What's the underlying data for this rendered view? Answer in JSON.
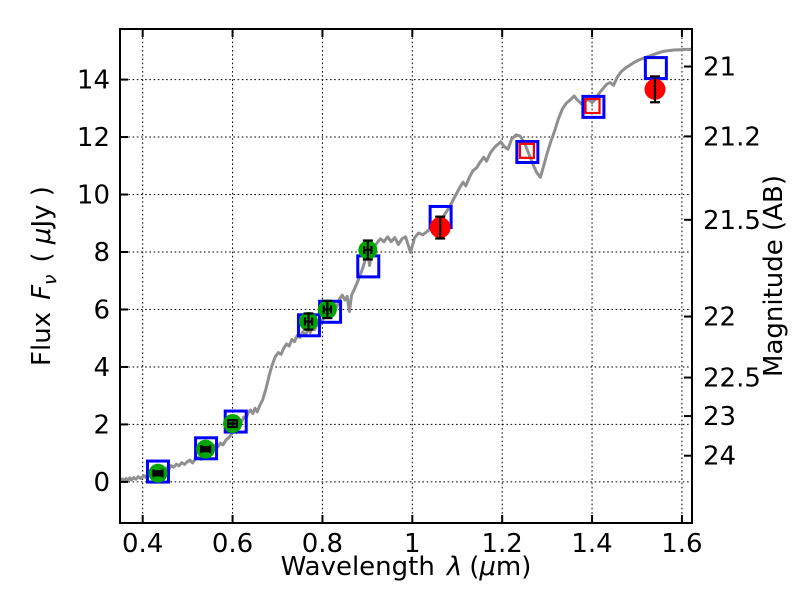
{
  "figure": {
    "background": "#ffffff"
  },
  "chart_data": {
    "type": "line+scatter",
    "title": "",
    "xlabel": {
      "word": "Wavelength",
      "symbol": "λ",
      "paren_open": "(",
      "mu": "μ",
      "rest": "m)"
    },
    "ylabel_left": {
      "word": "Flux",
      "symbol": "F",
      "sub": "ν",
      "paren_open": "( ",
      "mu": "μ",
      "rest": "Jy )"
    },
    "ylabel_right": "Magnitude (AB)",
    "xlim": [
      0.3495,
      1.6224
    ],
    "ylim": [
      -1.43,
      15.76
    ],
    "grid": {
      "show": true,
      "style": "dotted",
      "color": "#000000"
    },
    "x_ticks": [
      {
        "v": 0.4,
        "label": "0.4"
      },
      {
        "v": 0.6,
        "label": "0.6"
      },
      {
        "v": 0.8,
        "label": "0.8"
      },
      {
        "v": 1.0,
        "label": "1"
      },
      {
        "v": 1.2,
        "label": "1.2"
      },
      {
        "v": 1.4,
        "label": "1.4"
      },
      {
        "v": 1.6,
        "label": "1.6"
      }
    ],
    "y_ticks_left": [
      {
        "v": 0,
        "label": "0"
      },
      {
        "v": 2,
        "label": "2"
      },
      {
        "v": 4,
        "label": "4"
      },
      {
        "v": 6,
        "label": "6"
      },
      {
        "v": 8,
        "label": "8"
      },
      {
        "v": 10,
        "label": "10"
      },
      {
        "v": 12,
        "label": "12"
      },
      {
        "v": 14,
        "label": "14"
      }
    ],
    "y_ticks_right": [
      {
        "flux": 14.454,
        "label": "21"
      },
      {
        "flux": 12.023,
        "label": "21.2"
      },
      {
        "flux": 9.12,
        "label": "21.5"
      },
      {
        "flux": 5.754,
        "label": "22"
      },
      {
        "flux": 3.631,
        "label": "22.5"
      },
      {
        "flux": 2.291,
        "label": "23"
      },
      {
        "flux": 0.912,
        "label": "24"
      }
    ],
    "colors": {
      "spectrum": "#8f8f8f",
      "blue_square": "#0000ff",
      "red_square": "#ff0000",
      "green_circle": "#00a500",
      "red_circle": "#ff0000",
      "errorbar": "#000000",
      "axis": "#000000"
    },
    "spectrum": {
      "name": "model galaxy spectrum",
      "points": [
        [
          0.35,
          0.05
        ],
        [
          0.355,
          0.1
        ],
        [
          0.359,
          0.02
        ],
        [
          0.363,
          0.12
        ],
        [
          0.367,
          0.05
        ],
        [
          0.371,
          0.14
        ],
        [
          0.375,
          0.07
        ],
        [
          0.38,
          0.15
        ],
        [
          0.385,
          0.09
        ],
        [
          0.39,
          0.18
        ],
        [
          0.396,
          0.12
        ],
        [
          0.402,
          0.22
        ],
        [
          0.407,
          0.16
        ],
        [
          0.412,
          0.28
        ],
        [
          0.417,
          0.22
        ],
        [
          0.423,
          0.31
        ],
        [
          0.429,
          0.26
        ],
        [
          0.435,
          0.33
        ],
        [
          0.441,
          0.27
        ],
        [
          0.447,
          0.35
        ],
        [
          0.453,
          0.48
        ],
        [
          0.458,
          0.44
        ],
        [
          0.463,
          0.57
        ],
        [
          0.469,
          0.51
        ],
        [
          0.475,
          0.62
        ],
        [
          0.481,
          0.56
        ],
        [
          0.487,
          0.67
        ],
        [
          0.493,
          0.61
        ],
        [
          0.499,
          0.7
        ],
        [
          0.505,
          0.76
        ],
        [
          0.511,
          0.66
        ],
        [
          0.517,
          0.79
        ],
        [
          0.523,
          0.86
        ],
        [
          0.529,
          0.79
        ],
        [
          0.535,
          0.93
        ],
        [
          0.541,
          1.01
        ],
        [
          0.547,
          1.09
        ],
        [
          0.552,
          1.04
        ],
        [
          0.557,
          1.21
        ],
        [
          0.562,
          1.29
        ],
        [
          0.567,
          1.21
        ],
        [
          0.573,
          1.35
        ],
        [
          0.579,
          1.29
        ],
        [
          0.585,
          1.45
        ],
        [
          0.591,
          1.53
        ],
        [
          0.597,
          1.64
        ],
        [
          0.603,
          1.78
        ],
        [
          0.608,
          1.72
        ],
        [
          0.613,
          1.9
        ],
        [
          0.619,
          2.06
        ],
        [
          0.625,
          2.26
        ],
        [
          0.63,
          2.2
        ],
        [
          0.635,
          2.43
        ],
        [
          0.64,
          2.5
        ],
        [
          0.645,
          2.38
        ],
        [
          0.65,
          2.56
        ],
        [
          0.655,
          2.44
        ],
        [
          0.66,
          2.64
        ],
        [
          0.667,
          2.86
        ],
        [
          0.674,
          3.22
        ],
        [
          0.681,
          3.68
        ],
        [
          0.688,
          4.06
        ],
        [
          0.695,
          4.36
        ],
        [
          0.702,
          4.5
        ],
        [
          0.708,
          4.44
        ],
        [
          0.714,
          4.66
        ],
        [
          0.72,
          4.8
        ],
        [
          0.726,
          4.73
        ],
        [
          0.732,
          4.96
        ],
        [
          0.738,
          4.88
        ],
        [
          0.744,
          5.1
        ],
        [
          0.75,
          5.03
        ],
        [
          0.756,
          5.22
        ],
        [
          0.762,
          5.1
        ],
        [
          0.768,
          5.32
        ],
        [
          0.773,
          5.2
        ],
        [
          0.778,
          5.44
        ],
        [
          0.783,
          5.3
        ],
        [
          0.788,
          5.54
        ],
        [
          0.793,
          5.4
        ],
        [
          0.799,
          5.6
        ],
        [
          0.805,
          5.78
        ],
        [
          0.81,
          5.93
        ],
        [
          0.815,
          6.06
        ],
        [
          0.82,
          5.93
        ],
        [
          0.826,
          6.2
        ],
        [
          0.832,
          6.08
        ],
        [
          0.838,
          6.36
        ],
        [
          0.844,
          6.5
        ],
        [
          0.85,
          6.33
        ],
        [
          0.855,
          6.46
        ],
        [
          0.86,
          5.93
        ],
        [
          0.865,
          6.5
        ],
        [
          0.871,
          6.7
        ],
        [
          0.878,
          6.96
        ],
        [
          0.885,
          7.23
        ],
        [
          0.891,
          7.5
        ],
        [
          0.897,
          7.83
        ],
        [
          0.901,
          7.96
        ],
        [
          0.905,
          7.53
        ],
        [
          0.909,
          7.98
        ],
        [
          0.915,
          8.16
        ],
        [
          0.922,
          8.33
        ],
        [
          0.929,
          8.46
        ],
        [
          0.937,
          8.36
        ],
        [
          0.945,
          8.53
        ],
        [
          0.953,
          8.36
        ],
        [
          0.961,
          8.5
        ],
        [
          0.969,
          8.26
        ],
        [
          0.977,
          8.46
        ],
        [
          0.985,
          8.53
        ],
        [
          0.996,
          7.98
        ],
        [
          1.005,
          8.5
        ],
        [
          1.014,
          8.66
        ],
        [
          1.023,
          8.6
        ],
        [
          1.032,
          8.7
        ],
        [
          1.041,
          8.83
        ],
        [
          1.051,
          8.93
        ],
        [
          1.062,
          9.03
        ],
        [
          1.073,
          9.33
        ],
        [
          1.084,
          9.6
        ],
        [
          1.095,
          9.93
        ],
        [
          1.105,
          10.23
        ],
        [
          1.113,
          10.43
        ],
        [
          1.119,
          10.3
        ],
        [
          1.127,
          10.6
        ],
        [
          1.135,
          10.83
        ],
        [
          1.143,
          10.93
        ],
        [
          1.151,
          11.13
        ],
        [
          1.159,
          11.3
        ],
        [
          1.165,
          11.16
        ],
        [
          1.173,
          11.43
        ],
        [
          1.181,
          11.6
        ],
        [
          1.189,
          11.73
        ],
        [
          1.197,
          11.83
        ],
        [
          1.205,
          11.66
        ],
        [
          1.213,
          11.58
        ],
        [
          1.221,
          11.93
        ],
        [
          1.231,
          12.08
        ],
        [
          1.24,
          12.03
        ],
        [
          1.25,
          11.78
        ],
        [
          1.259,
          11.43
        ],
        [
          1.269,
          11.03
        ],
        [
          1.277,
          10.76
        ],
        [
          1.285,
          10.6
        ],
        [
          1.292,
          10.98
        ],
        [
          1.3,
          11.43
        ],
        [
          1.308,
          11.83
        ],
        [
          1.316,
          12.18
        ],
        [
          1.325,
          12.63
        ],
        [
          1.334,
          12.98
        ],
        [
          1.343,
          13.18
        ],
        [
          1.352,
          13.3
        ],
        [
          1.36,
          13.43
        ],
        [
          1.368,
          13.28
        ],
        [
          1.376,
          13.16
        ],
        [
          1.384,
          13.26
        ],
        [
          1.392,
          13.3
        ],
        [
          1.4,
          13.2
        ],
        [
          1.408,
          13.33
        ],
        [
          1.416,
          13.53
        ],
        [
          1.424,
          13.68
        ],
        [
          1.432,
          13.83
        ],
        [
          1.44,
          13.9
        ],
        [
          1.448,
          13.8
        ],
        [
          1.456,
          14.08
        ],
        [
          1.464,
          14.26
        ],
        [
          1.474,
          14.4
        ],
        [
          1.484,
          14.5
        ],
        [
          1.494,
          14.6
        ],
        [
          1.504,
          14.68
        ],
        [
          1.514,
          14.74
        ],
        [
          1.524,
          14.8
        ],
        [
          1.534,
          14.86
        ],
        [
          1.546,
          14.92
        ],
        [
          1.558,
          14.98
        ],
        [
          1.57,
          15.01
        ],
        [
          1.582,
          15.03
        ],
        [
          1.596,
          15.04
        ],
        [
          1.61,
          15.05
        ],
        [
          1.622,
          15.05
        ]
      ]
    },
    "series": [
      {
        "name": "model-photometry-blue-squares",
        "marker": "open-square",
        "color": "#0000ff",
        "size": 21,
        "stroke": 3,
        "points": [
          {
            "x": 0.434,
            "y": 0.36
          },
          {
            "x": 0.541,
            "y": 1.17
          },
          {
            "x": 0.607,
            "y": 2.1
          },
          {
            "x": 0.77,
            "y": 5.45
          },
          {
            "x": 0.817,
            "y": 5.92
          },
          {
            "x": 0.902,
            "y": 7.5
          },
          {
            "x": 1.063,
            "y": 9.22
          },
          {
            "x": 1.256,
            "y": 11.48
          },
          {
            "x": 1.403,
            "y": 13.05
          },
          {
            "x": 1.542,
            "y": 14.4
          }
        ]
      },
      {
        "name": "observed-red-squares",
        "marker": "open-square",
        "color": "#ff0000",
        "size": 14,
        "stroke": 2.2,
        "points": [
          {
            "x": 1.255,
            "y": 11.52
          },
          {
            "x": 1.401,
            "y": 13.08
          }
        ]
      },
      {
        "name": "observed-green-circles",
        "marker": "filled-circle",
        "color": "#00a500",
        "size": 19,
        "points": [
          {
            "x": 0.434,
            "y": 0.3,
            "yerr": 0.07,
            "xerr": 0.01
          },
          {
            "x": 0.54,
            "y": 1.14,
            "yerr": 0.07,
            "xerr": 0.01
          },
          {
            "x": 0.6,
            "y": 2.03,
            "yerr": 0.12,
            "xerr": 0.01
          },
          {
            "x": 0.769,
            "y": 5.58,
            "yerr": 0.28,
            "xerr": 0.008
          },
          {
            "x": 0.811,
            "y": 6.0,
            "yerr": 0.3,
            "xerr": 0.008
          },
          {
            "x": 0.901,
            "y": 8.07,
            "yerr": 0.33,
            "xerr": 0.008
          }
        ]
      },
      {
        "name": "observed-red-circles",
        "marker": "filled-circle",
        "color": "#ff0000",
        "size": 21,
        "points": [
          {
            "x": 1.062,
            "y": 8.85,
            "yerr": 0.38
          },
          {
            "x": 1.54,
            "y": 13.66,
            "yerr": 0.45
          }
        ]
      }
    ]
  }
}
